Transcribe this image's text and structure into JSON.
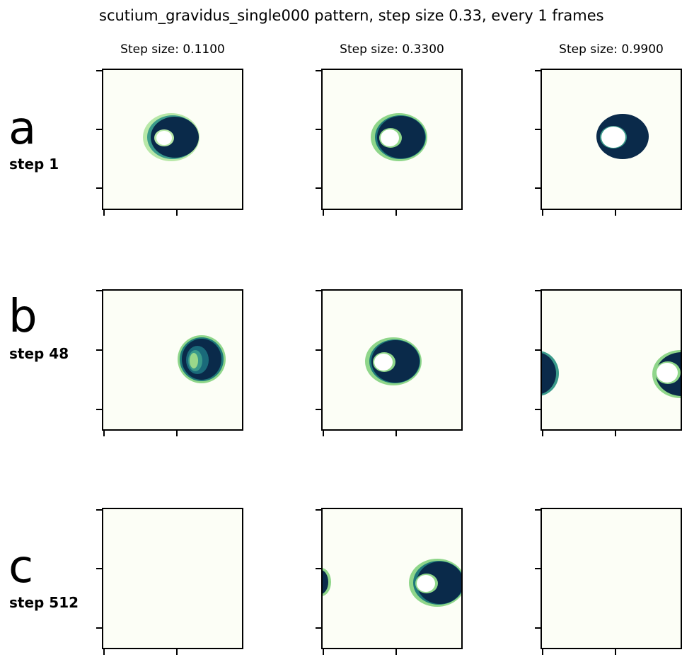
{
  "suptitle": "scutium_gravidus_single000 pattern, step size 0.33, every 1 frames",
  "columns": [
    {
      "label": "Step size: 0.1100"
    },
    {
      "label": "Step size: 0.3300"
    },
    {
      "label": "Step size: 0.9900"
    }
  ],
  "rows": [
    {
      "letter": "a",
      "step": "step 1"
    },
    {
      "letter": "b",
      "step": "step 48"
    },
    {
      "letter": "c",
      "step": "step 512"
    }
  ],
  "colors": {
    "background": "#fcfef6",
    "dark": "#0a2a4a",
    "mid": "#1f7a7a",
    "light": "#8fd68a",
    "white": "#ffffff"
  }
}
